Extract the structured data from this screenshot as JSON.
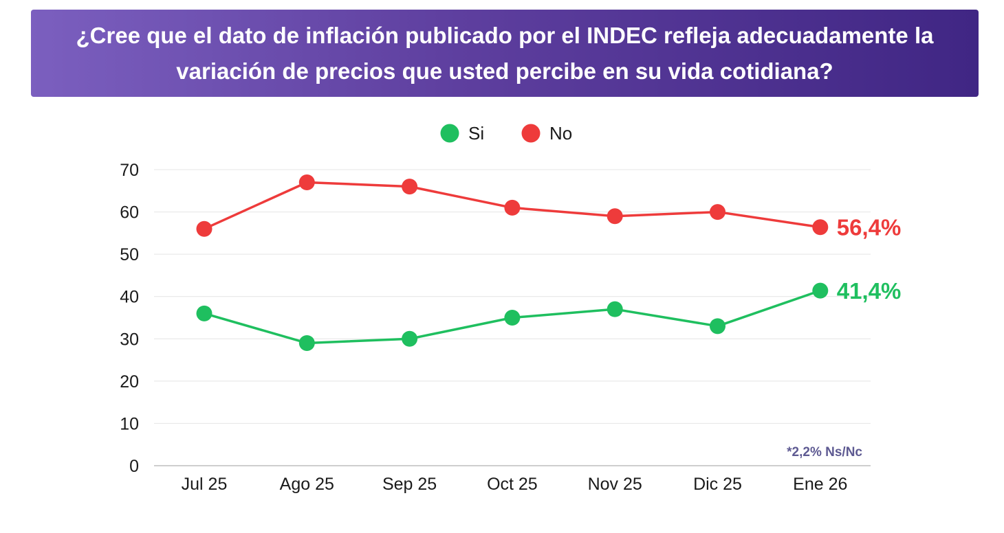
{
  "chart_data": {
    "type": "line",
    "title": "¿Cree que el dato de inflación publicado por el INDEC refleja adecuadamente la variación de precios que usted percibe en su vida cotidiana?",
    "categories": [
      "Jul 25",
      "Ago 25",
      "Sep 25",
      "Oct 25",
      "Nov 25",
      "Dic 25",
      "Ene 26"
    ],
    "series": [
      {
        "name": "Si",
        "color": "#1fbf5f",
        "values": [
          36,
          29,
          30,
          35,
          37,
          33,
          41.4
        ],
        "end_label": "41,4%"
      },
      {
        "name": "No",
        "color": "#ee3b3b",
        "values": [
          56,
          67,
          66,
          61,
          59,
          60,
          56.4
        ],
        "end_label": "56,4%"
      }
    ],
    "ylim": [
      0,
      70
    ],
    "yticks": [
      "0",
      "10",
      "20",
      "30",
      "40",
      "50",
      "60",
      "70"
    ],
    "xlabel": "",
    "ylabel": "",
    "grid": true,
    "legend": "top-center",
    "note": "*2,2% Ns/Nc",
    "note_color": "#5e5a92"
  }
}
